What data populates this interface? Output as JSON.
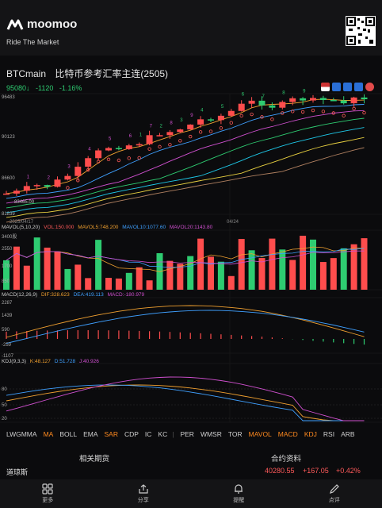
{
  "brand": {
    "name": "moomoo",
    "tagline": "Ride The Market"
  },
  "header": {
    "symbol": "BTCmain",
    "name_cn": "比特币参考汇率主连(2505)",
    "price": "95080",
    "change": "-1120",
    "change_pct": "-1.16%"
  },
  "chart": {
    "y_labels": [
      "96483",
      "90123",
      "86600",
      "83465.00",
      "81839"
    ],
    "date_labels": [
      "2025/04/17",
      "04/24"
    ],
    "ma_markers": [
      "1",
      "2",
      "3",
      "4",
      "5",
      "6",
      "7",
      "8",
      "9",
      "1",
      "2",
      "3",
      "4",
      "5",
      "6",
      "7",
      "8",
      "9"
    ]
  },
  "mavol": {
    "label": "MAVOL(5,10,20)",
    "vol": "VOL:150.000",
    "m5": "MAVOL5:748.200",
    "m10": "MAVOL10:1077.60",
    "m20": "MAVOL20:1143.80",
    "y_labels": [
      "3400股",
      "2550",
      "1700",
      "850"
    ]
  },
  "macd": {
    "label": "MACD(12,26,9)",
    "dif": "DIF:328.623",
    "dea": "DEA:419.113",
    "macd": "MACD:-180.979",
    "y_labels": [
      "2287",
      "1439",
      "590",
      "-259",
      "-1107"
    ]
  },
  "kdj": {
    "label": "KDJ(9,3,3)",
    "k": "K:48.127",
    "d": "D:51.728",
    "j": "J:40.926",
    "y_labels": [
      "80",
      "50",
      "20"
    ]
  },
  "indicator_tabs": [
    "LWGMMA",
    "MA",
    "BOLL",
    "EMA",
    "SAR",
    "CDP",
    "IC",
    "KC",
    "|",
    "PER",
    "WMSR",
    "TOR",
    "MAVOL",
    "MACD",
    "KDJ",
    "RSI",
    "ARB"
  ],
  "active_tabs": [
    "MA",
    "SAR",
    "MAVOL",
    "MACD",
    "KDJ"
  ],
  "related": {
    "left_title": "相关期货",
    "right_title": "合约资料"
  },
  "quote_row": {
    "name": "道琼斯",
    "value": "40280.55",
    "change": "+167.05",
    "pct": "+0.42%"
  },
  "bottom_nav": [
    {
      "label": "更多"
    },
    {
      "label": "分享"
    },
    {
      "label": "提醒"
    },
    {
      "label": "点评"
    }
  ],
  "colors": {
    "up": "#ff4d4d",
    "down": "#2ecc71",
    "accent": "#ff8a1f"
  }
}
